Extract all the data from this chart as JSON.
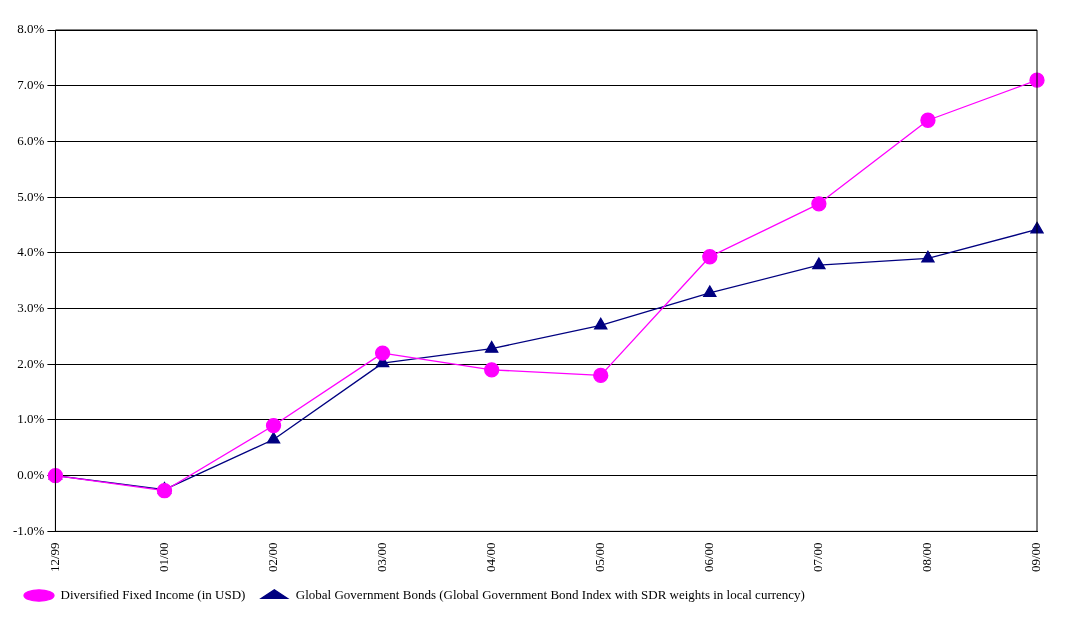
{
  "chart_data": {
    "type": "line",
    "categories": [
      "12/99",
      "01/00",
      "02/00",
      "03/00",
      "04/00",
      "05/00",
      "06/00",
      "07/00",
      "08/00",
      "09/00"
    ],
    "series": [
      {
        "name": "Global Government Bonds (Global Government Bond Index with SDR weights in local currency)",
        "color": "#000080",
        "marker": "triangle",
        "values": [
          0,
          -0.25,
          0.65,
          2.02,
          2.28,
          2.7,
          3.28,
          3.78,
          3.9,
          4.42
        ]
      },
      {
        "name": "Diversified Fixed Income (in USD)",
        "color": "#ff00ff",
        "marker": "circle",
        "values": [
          0,
          -0.27,
          0.9,
          2.2,
          1.9,
          1.8,
          3.93,
          4.88,
          6.38,
          7.1
        ]
      }
    ],
    "ylim": [
      -1,
      8
    ],
    "yticks": [
      {
        "value": -1,
        "label": "-1.0%"
      },
      {
        "value": 0,
        "label": "0.0%"
      },
      {
        "value": 1,
        "label": "1.0%"
      },
      {
        "value": 2,
        "label": "2.0%"
      },
      {
        "value": 3,
        "label": "3.0%"
      },
      {
        "value": 4,
        "label": "4.0%"
      },
      {
        "value": 5,
        "label": "5.0%"
      },
      {
        "value": 6,
        "label": "6.0%"
      },
      {
        "value": 7,
        "label": "7.0%"
      },
      {
        "value": 8,
        "label": "8.0%"
      }
    ],
    "grid": "y",
    "legend": "bottom",
    "line_style": "solid"
  }
}
